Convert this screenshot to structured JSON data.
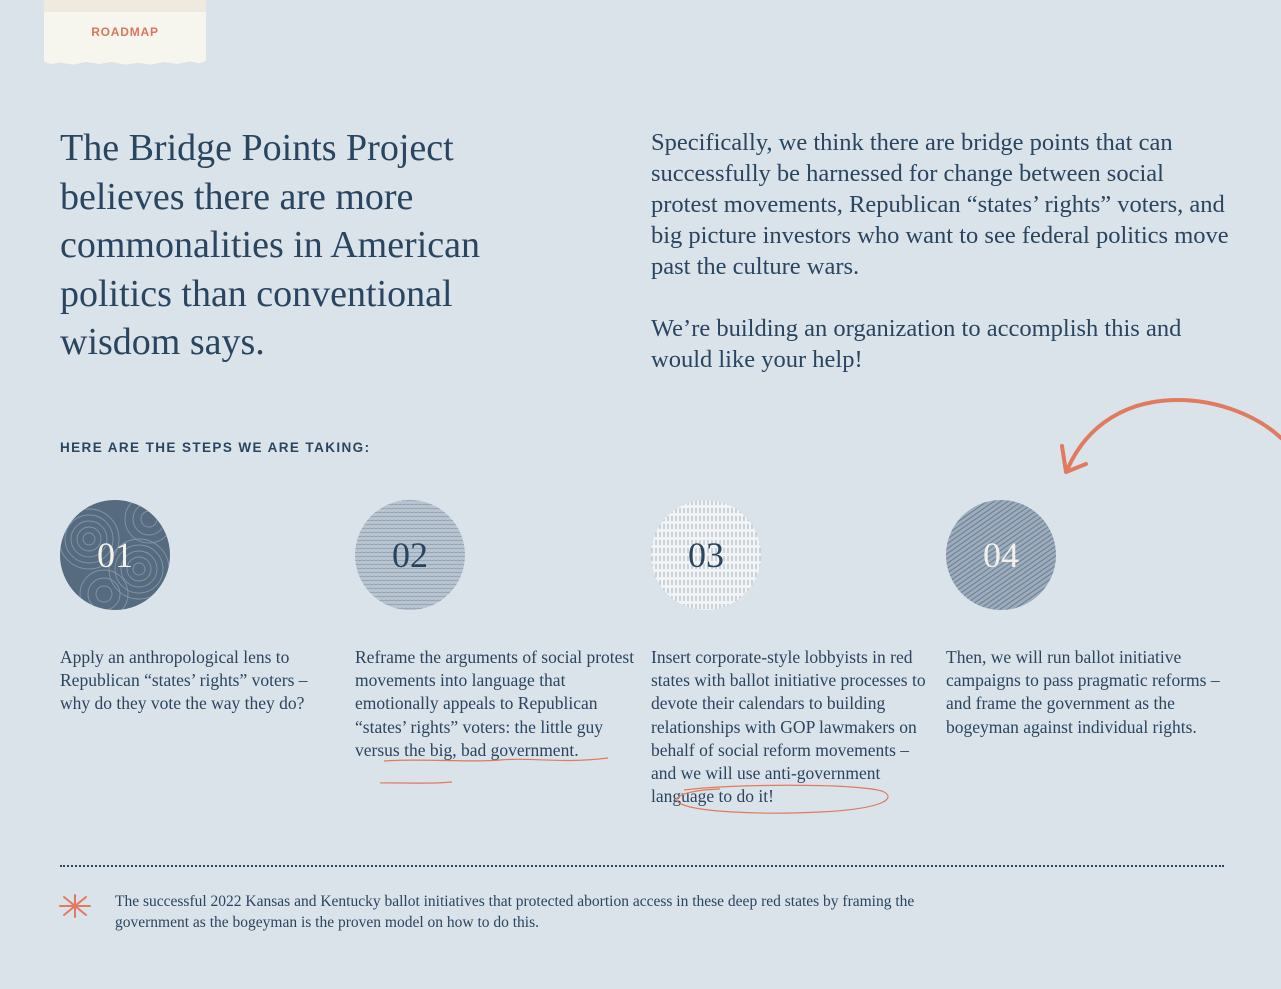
{
  "tag": {
    "label": "ROADMAP"
  },
  "headline": "The Bridge Points Project believes there are more commonalities in American politics than conventional wisdom says.",
  "intro": {
    "paragraph_1": "Specifically, we think there are bridge points that can successfully be harnessed for change between social protest movements, Republican “states’ rights” voters, and big picture investors who want to see federal politics move past the culture wars.",
    "paragraph_2": "We’re building an organization to accomplish this and would like your help!"
  },
  "steps_heading": "HERE ARE THE STEPS WE ARE TAKING:",
  "steps": [
    {
      "number": "01",
      "text": "Apply an anthropological lens to Republican “states’ rights” voters – why do they vote the way they do?"
    },
    {
      "number": "02",
      "text_before": "Reframe the arguments of social protest movements into language that emotionally appeals to Republican “states’ rights” voters: the ",
      "text_marked": "little guy versus the big, bad government",
      "text_after": "."
    },
    {
      "number": "03",
      "text_before": "Insert corporate-style lobbyists in red states with ballot initiative processes to devote their calendars to building relationships with GOP lawmakers on behalf of social reform movements – and we will use ",
      "text_marked": "anti-government language",
      "text_after": " to do it!"
    },
    {
      "number": "04",
      "text": "Then, we will run ballot initiative campaigns to pass pragmatic reforms – and frame the government as the bogeyman against individual rights."
    }
  ],
  "footnote": "The successful 2022 Kansas and Kentucky ballot initiatives that protected abortion access in these deep red states by framing the government as the bogeyman is the proven model on how to do this.",
  "colors": {
    "background": "#dae2ea",
    "navy": "#2a4560",
    "accent": "#e07b5f",
    "tag_paper": "#f6f5ee"
  },
  "icons": {
    "arrow": "curved-arrow-icon",
    "footnote_marker": "asterisk-icon"
  }
}
